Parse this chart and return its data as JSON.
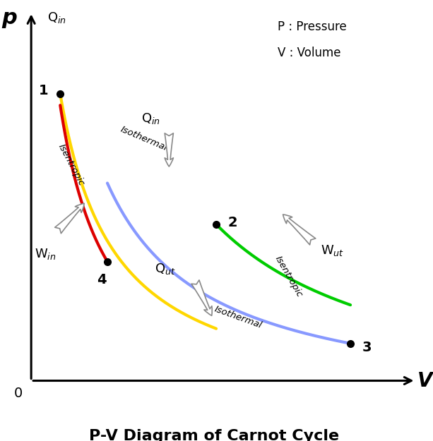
{
  "title": "P-V Diagram of Carnot Cycle",
  "xlabel": "V",
  "ylabel": "p",
  "legend_text": "P : Pressure\nV : Volume",
  "points": {
    "1": [
      1.5,
      8.5
    ],
    "2": [
      5.8,
      5.0
    ],
    "3": [
      9.5,
      1.8
    ],
    "4": [
      2.8,
      4.0
    ]
  },
  "colors": {
    "1to2": "#FFD700",
    "2to3": "#00CC00",
    "3to4": "#8899FF",
    "4to1": "#DD0000"
  },
  "background": "#FFFFFF",
  "point_color": "#111111",
  "xlim": [
    0,
    11.5
  ],
  "ylim": [
    0,
    11.0
  ],
  "figsize": [
    6.13,
    6.25
  ],
  "dpi": 100,
  "gamma": 1.15
}
